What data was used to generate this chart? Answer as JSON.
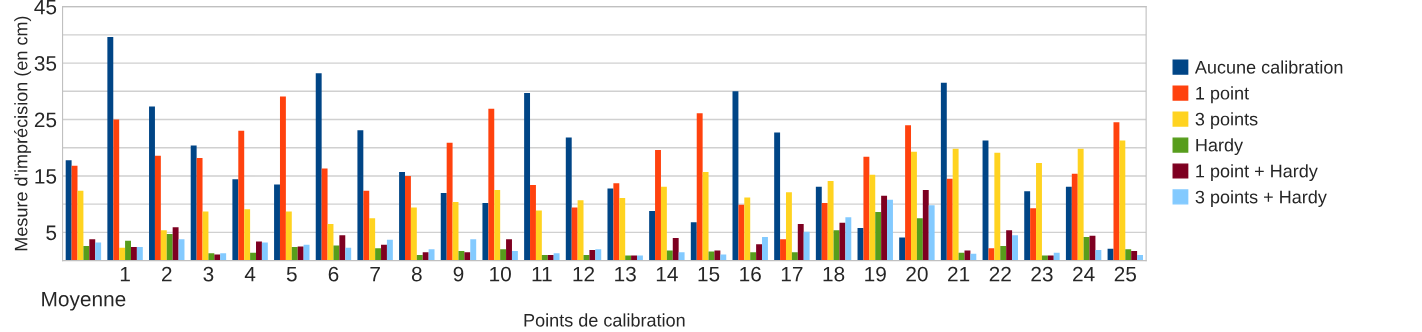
{
  "chart_data": {
    "type": "bar",
    "xlabel": "Points de calibration",
    "ylabel": "Mesure d'imprécision (en cm)",
    "categories": [
      "Moyenne",
      "1",
      "2",
      "3",
      "4",
      "5",
      "6",
      "7",
      "8",
      "9",
      "10",
      "11",
      "12",
      "13",
      "14",
      "15",
      "16",
      "17",
      "18",
      "19",
      "20",
      "21",
      "22",
      "23",
      "24",
      "25"
    ],
    "series": [
      {
        "name": "Aucune calibration",
        "color": "#004586",
        "values": [
          17.8,
          39.6,
          27.3,
          20.4,
          14.4,
          13.5,
          33.2,
          23.1,
          15.7,
          12.0,
          10.2,
          29.7,
          21.8,
          12.8,
          8.8,
          6.8,
          30.0,
          22.7,
          13.1,
          5.8,
          4.1,
          31.5,
          21.3,
          12.3,
          13.1,
          2.1
        ]
      },
      {
        "name": "1 point",
        "color": "#ff420e",
        "values": [
          16.8,
          25.0,
          18.6,
          18.2,
          23.0,
          29.1,
          16.3,
          12.4,
          15.0,
          20.9,
          26.9,
          13.4,
          9.4,
          13.7,
          19.6,
          26.1,
          9.9,
          3.8,
          10.2,
          18.4,
          24.0,
          14.5,
          2.2,
          9.3,
          15.4,
          24.5
        ]
      },
      {
        "name": "3 points",
        "color": "#ffd320",
        "values": [
          12.4,
          2.3,
          5.4,
          8.7,
          9.1,
          8.7,
          6.5,
          7.5,
          9.4,
          10.4,
          12.5,
          8.9,
          10.7,
          11.1,
          13.1,
          15.7,
          11.2,
          12.1,
          14.1,
          15.2,
          19.3,
          19.8,
          19.1,
          17.3,
          19.8,
          21.3
        ]
      },
      {
        "name": "Hardy",
        "color": "#579d1c",
        "values": [
          2.6,
          3.5,
          4.7,
          1.3,
          1.4,
          2.4,
          2.7,
          2.2,
          1.0,
          1.7,
          2.0,
          1.0,
          1.0,
          0.9,
          1.8,
          1.6,
          1.5,
          1.5,
          5.4,
          8.6,
          7.5,
          1.4,
          2.6,
          0.9,
          4.2,
          2.0
        ]
      },
      {
        "name": "1 point + Hardy",
        "color": "#7e0021",
        "values": [
          3.8,
          2.4,
          5.9,
          1.1,
          3.4,
          2.5,
          4.5,
          2.8,
          1.5,
          1.5,
          3.8,
          1.0,
          1.9,
          0.9,
          4.0,
          1.8,
          2.9,
          6.5,
          6.7,
          11.5,
          12.5,
          1.8,
          5.4,
          0.9,
          4.4,
          1.7
        ]
      },
      {
        "name": "3 points + Hardy",
        "color": "#83caff",
        "values": [
          3.2,
          2.4,
          3.8,
          1.3,
          3.2,
          2.8,
          2.3,
          3.7,
          2.0,
          3.8,
          1.7,
          1.3,
          2.0,
          0.9,
          1.5,
          1.1,
          4.2,
          5.1,
          7.7,
          10.8,
          9.8,
          1.2,
          4.5,
          1.4,
          1.9,
          1.0
        ]
      }
    ],
    "ylim": [
      0,
      45
    ],
    "yticks": [
      {
        "value": 0,
        "label": null
      },
      5,
      {
        "value": 10,
        "label": null
      },
      15,
      {
        "value": 20,
        "label": null
      },
      25,
      {
        "value": 30,
        "label": null
      },
      35,
      {
        "value": 40,
        "label": null
      },
      45
    ],
    "grid": "y",
    "legend": "right"
  }
}
